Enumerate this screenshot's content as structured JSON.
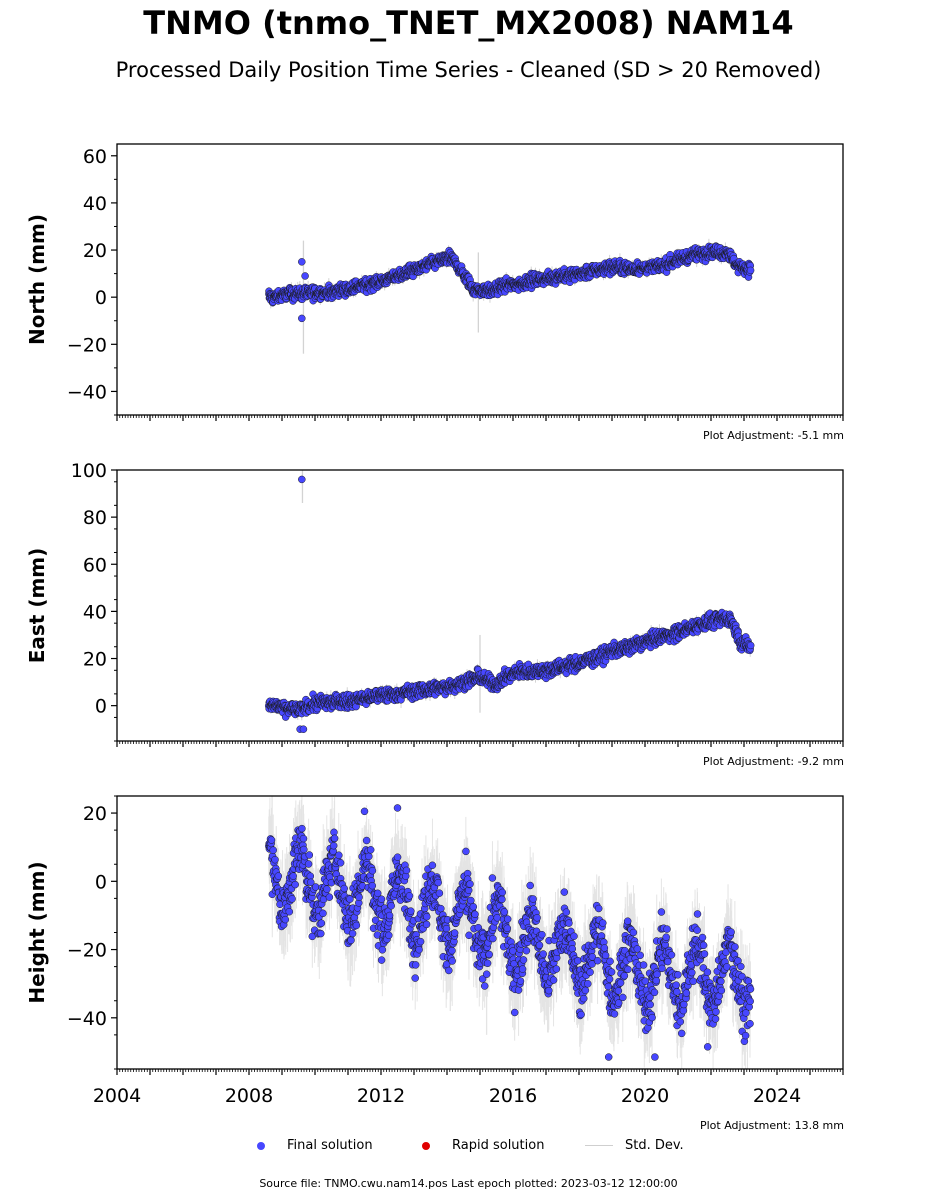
{
  "chart_data": {
    "type": "scatter",
    "title": "TNMO (tnmo_TNET_MX2008) NAM14",
    "subtitle": "Processed Daily Position Time Series - Cleaned (SD > 20 Removed)",
    "x_ticks": [
      "2004",
      "2008",
      "2012",
      "2016",
      "2020",
      "2024"
    ],
    "xlim": [
      2004,
      2026
    ],
    "legend": {
      "placement": "bottom",
      "entries": [
        "Final solution",
        "Rapid solution",
        "Std. Dev."
      ]
    },
    "colors": {
      "final": "#4747ff",
      "rapid": "#e00000",
      "stddev": "#cfcfcf",
      "edge": "#1a1a1a"
    },
    "panels": [
      {
        "ylabel": "North (mm)",
        "ylim": [
          -50,
          65
        ],
        "yticks": [
          -40,
          -20,
          0,
          20,
          40,
          60
        ],
        "adjustment": "Plot Adjustment: -5.1 mm",
        "trend": [
          [
            2008.6,
            0
          ],
          [
            2009.5,
            1.5
          ],
          [
            2010.5,
            2
          ],
          [
            2011.5,
            5
          ],
          [
            2012.5,
            9
          ],
          [
            2013.5,
            14
          ],
          [
            2014.1,
            17
          ],
          [
            2014.4,
            12
          ],
          [
            2014.8,
            3
          ],
          [
            2015.4,
            3
          ],
          [
            2015.8,
            5
          ],
          [
            2017.0,
            8
          ],
          [
            2018.0,
            10
          ],
          [
            2019.0,
            13
          ],
          [
            2019.6,
            12
          ],
          [
            2020.5,
            13
          ],
          [
            2021.2,
            17
          ],
          [
            2021.8,
            19
          ],
          [
            2022.5,
            19
          ],
          [
            2022.8,
            13
          ],
          [
            2023.2,
            12
          ]
        ],
        "noise": 1.8,
        "outliers": [
          [
            2009.6,
            15
          ],
          [
            2009.6,
            -9
          ],
          [
            2009.7,
            9
          ]
        ],
        "errbars": [
          [
            2009.65,
            -24,
            24
          ],
          [
            2014.95,
            -15,
            19
          ]
        ]
      },
      {
        "ylabel": "East (mm)",
        "ylim": [
          -15,
          100
        ],
        "yticks": [
          0,
          20,
          40,
          60,
          80,
          100
        ],
        "adjustment": "Plot Adjustment: -9.2 mm",
        "trend": [
          [
            2008.6,
            0
          ],
          [
            2009.5,
            -2
          ],
          [
            2010.0,
            1
          ],
          [
            2011.0,
            2
          ],
          [
            2012.0,
            4
          ],
          [
            2013.0,
            6
          ],
          [
            2014.0,
            8
          ],
          [
            2015.0,
            12
          ],
          [
            2015.5,
            9
          ],
          [
            2016.0,
            14
          ],
          [
            2017.0,
            15
          ],
          [
            2018.0,
            18
          ],
          [
            2019.0,
            23
          ],
          [
            2020.0,
            27
          ],
          [
            2021.0,
            31
          ],
          [
            2022.0,
            36
          ],
          [
            2022.6,
            37
          ],
          [
            2022.9,
            27
          ],
          [
            2023.2,
            25
          ]
        ],
        "noise": 2.0,
        "outliers": [
          [
            2009.6,
            96
          ],
          [
            2009.55,
            -10
          ],
          [
            2009.65,
            -10
          ]
        ],
        "errbars": [
          [
            2009.62,
            86,
            106
          ],
          [
            2015.0,
            -3,
            30
          ]
        ]
      },
      {
        "ylabel": "Height (mm)",
        "ylim": [
          -55,
          25
        ],
        "yticks": [
          -40,
          -20,
          0,
          20
        ],
        "adjustment": "Plot Adjustment: 13.8 mm",
        "trend": [
          [
            2008.6,
            2
          ],
          [
            2012.0,
            -5
          ],
          [
            2014.0,
            -10
          ],
          [
            2016.0,
            -17
          ],
          [
            2018.0,
            -22
          ],
          [
            2020.0,
            -27
          ],
          [
            2023.2,
            -28
          ]
        ],
        "seasonal_amplitude": 9,
        "noise": 5.5,
        "outliers": [
          [
            2011.5,
            20.5
          ],
          [
            2012.5,
            21.5
          ],
          [
            2018.9,
            -51.5
          ],
          [
            2020.3,
            -51.5
          ],
          [
            2021.9,
            -48.5
          ]
        ],
        "errbars": [
          [
            2008.7,
            -2,
            26
          ],
          [
            2014.1,
            -38,
            -20
          ],
          [
            2015.2,
            -45,
            -25
          ]
        ]
      }
    ]
  },
  "footer": {
    "source": "Source file: TNMO.cwu.nam14.pos  Last epoch plotted: 2023-03-12 12:00:00"
  }
}
